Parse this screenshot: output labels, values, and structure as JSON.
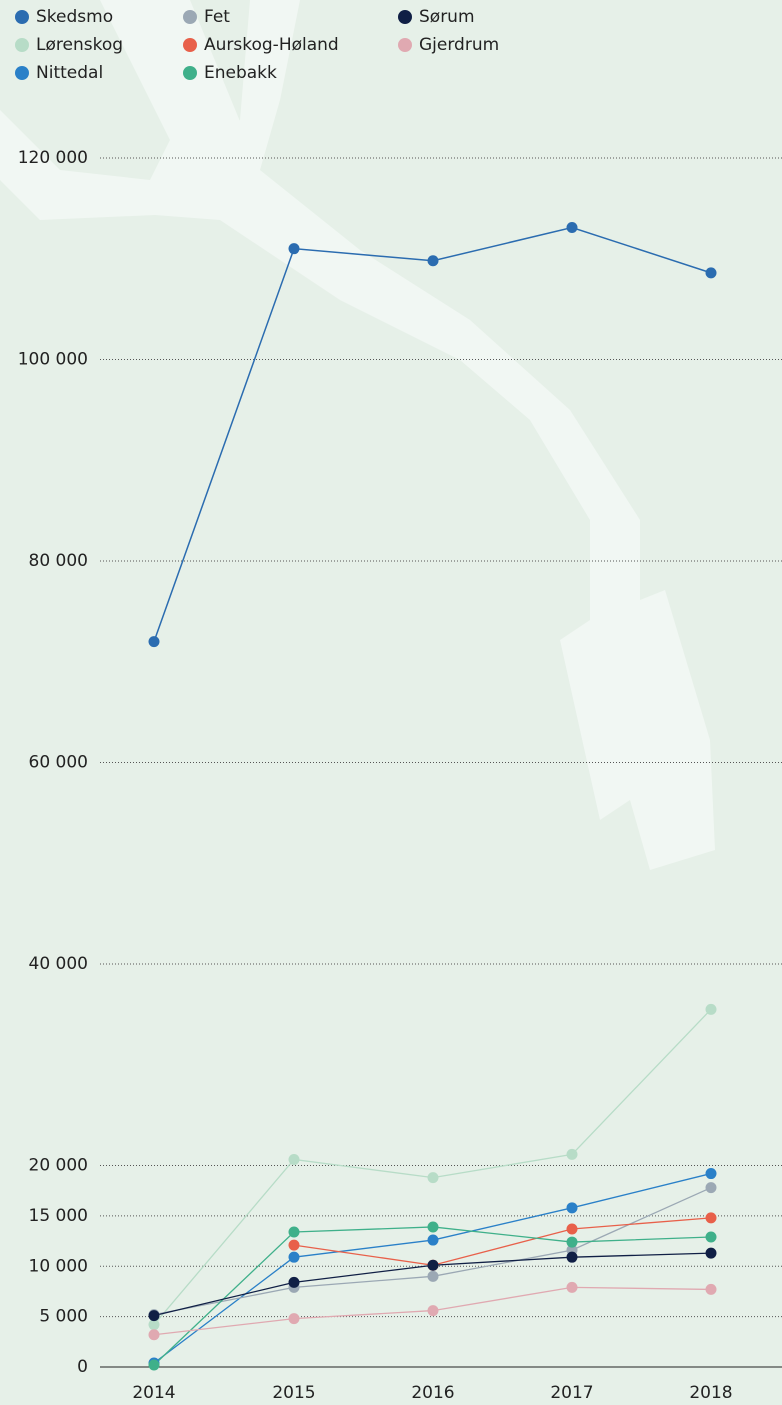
{
  "chart_data": {
    "type": "line",
    "categories": [
      "2014",
      "2015",
      "2016",
      "2017",
      "2018"
    ],
    "ylim": [
      0,
      120000
    ],
    "yticks": [
      0,
      {
        "value": 5000,
        "label": "5 000"
      },
      {
        "value": 10000,
        "label": "10 000"
      },
      {
        "value": 15000,
        "label": "15 000"
      },
      {
        "value": 20000,
        "label": "20 000"
      },
      {
        "value": 40000,
        "label": "40 000"
      },
      {
        "value": 60000,
        "label": "60 000"
      },
      {
        "value": 80000,
        "label": "80 000"
      },
      {
        "value": 100000,
        "label": "100 000"
      },
      {
        "value": 120000,
        "label": "120 000"
      }
    ],
    "grid": true,
    "series": [
      {
        "name": "Skedsmo",
        "color": "#2b6cb0",
        "values": [
          72000,
          111000,
          109800,
          113100,
          108600
        ]
      },
      {
        "name": "Lørenskog",
        "color": "#b7dcc7",
        "values": [
          4200,
          20600,
          18800,
          21100,
          35500
        ]
      },
      {
        "name": "Nittedal",
        "color": "#2a80c8",
        "values": [
          400,
          10900,
          12600,
          15800,
          19200
        ]
      },
      {
        "name": "Fet",
        "color": "#9ba8b4",
        "values": [
          5200,
          7900,
          9000,
          11600,
          17800
        ]
      },
      {
        "name": "Aurskog-Høland",
        "color": "#e8604a",
        "values": [
          null,
          12100,
          10100,
          13700,
          14800
        ]
      },
      {
        "name": "Enebakk",
        "color": "#3fb08a",
        "values": [
          200,
          13400,
          13900,
          12400,
          12900
        ]
      },
      {
        "name": "Sørum",
        "color": "#101f45",
        "values": [
          5100,
          8400,
          10100,
          10900,
          11300
        ]
      },
      {
        "name": "Gjerdrum",
        "color": "#e0a9b1",
        "values": [
          3200,
          4800,
          5600,
          7900,
          7700
        ]
      }
    ]
  }
}
